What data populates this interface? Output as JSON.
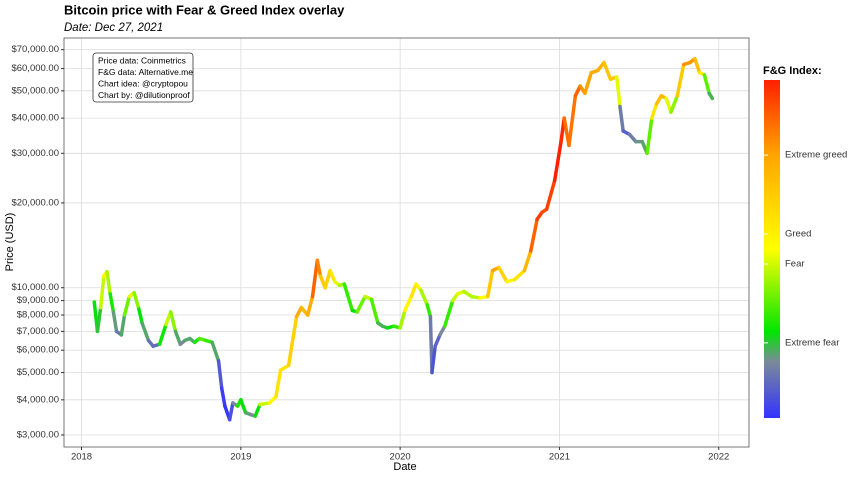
{
  "chart_data": {
    "type": "line",
    "title": "Bitcoin price with Fear & Greed Index overlay",
    "subtitle": "Date: Dec 27, 2021",
    "xlabel": "Date",
    "ylabel": "Price (USD)",
    "annotations": [
      "Price data: Coinmetrics",
      "F&G data: Alternative.me",
      "Chart idea: @cryptopou",
      "Chart by: @dilutionproof"
    ],
    "legend_title": "F&G Index:",
    "log_y": true,
    "grid": true,
    "xlim": [
      2017.89,
      2022.19
    ],
    "xticks": [
      2018,
      2019,
      2020,
      2021,
      2022
    ],
    "ylim": [
      2720,
      77000
    ],
    "yticks": [
      {
        "value": 3000,
        "label": "$3,000.00"
      },
      {
        "value": 4000,
        "label": "$4,000.00"
      },
      {
        "value": 5000,
        "label": "$5,000.00"
      },
      {
        "value": 6000,
        "label": "$6,000.00"
      },
      {
        "value": 7000,
        "label": "$7,000.00"
      },
      {
        "value": 8000,
        "label": "$8,000.00"
      },
      {
        "value": 9000,
        "label": "$9,000.00"
      },
      {
        "value": 10000,
        "label": "$10,000.00"
      },
      {
        "value": 20000,
        "label": "$20,000.00"
      },
      {
        "value": 30000,
        "label": "$30,000.00"
      },
      {
        "value": 40000,
        "label": "$40,000.00"
      },
      {
        "value": 50000,
        "label": "$50,000.00"
      },
      {
        "value": 60000,
        "label": "$60,000.00"
      },
      {
        "value": 70000,
        "label": "$70,000.00"
      }
    ],
    "clim": [
      5,
      95
    ],
    "cticks": [
      {
        "value": 25,
        "label": "Extreme fear"
      },
      {
        "value": 46,
        "label": "Fear"
      },
      {
        "value": 54,
        "label": "Greed"
      },
      {
        "value": 75,
        "label": "Extreme greed"
      }
    ],
    "colorscale": [
      [
        5,
        "#3333ff"
      ],
      [
        20,
        "#7a8a99"
      ],
      [
        28,
        "#00e600"
      ],
      [
        50,
        "#ffff00"
      ],
      [
        75,
        "#ffa500"
      ],
      [
        95,
        "#ff2000"
      ]
    ],
    "series": [
      {
        "x": [
          2018.08,
          2018.1,
          2018.12,
          2018.14,
          2018.16,
          2018.18,
          2018.2,
          2018.22,
          2018.25,
          2018.27,
          2018.3,
          2018.33,
          2018.36,
          2018.38,
          2018.42,
          2018.45,
          2018.49,
          2018.53,
          2018.56,
          2018.59,
          2018.62,
          2018.65,
          2018.68,
          2018.71,
          2018.74,
          2018.78,
          2018.82,
          2018.86,
          2018.88,
          2018.9,
          2018.93,
          2018.95,
          2018.98,
          2019.0,
          2019.03,
          2019.06,
          2019.09,
          2019.12,
          2019.18,
          2019.22,
          2019.25,
          2019.3,
          2019.35,
          2019.38,
          2019.42,
          2019.45,
          2019.48,
          2019.5,
          2019.53,
          2019.56,
          2019.59,
          2019.62,
          2019.65,
          2019.7,
          2019.73,
          2019.78,
          2019.82,
          2019.86,
          2019.89,
          2019.92,
          2019.96,
          2020.0,
          2020.03,
          2020.07,
          2020.1,
          2020.13,
          2020.17,
          2020.19,
          2020.2,
          2020.22,
          2020.25,
          2020.28,
          2020.33,
          2020.36,
          2020.4,
          2020.45,
          2020.5,
          2020.55,
          2020.58,
          2020.62,
          2020.67,
          2020.72,
          2020.78,
          2020.82,
          2020.86,
          2020.89,
          2020.92,
          2020.97,
          2021.01,
          2021.03,
          2021.06,
          2021.1,
          2021.13,
          2021.16,
          2021.2,
          2021.24,
          2021.28,
          2021.32,
          2021.36,
          2021.38,
          2021.4,
          2021.44,
          2021.48,
          2021.52,
          2021.55,
          2021.58,
          2021.61,
          2021.64,
          2021.67,
          2021.7,
          2021.74,
          2021.78,
          2021.82,
          2021.85,
          2021.88,
          2021.91,
          2021.94,
          2021.96
        ],
        "values": [
          8900,
          7000,
          8500,
          11000,
          11400,
          9500,
          8200,
          7000,
          6800,
          8000,
          9300,
          9600,
          8400,
          7500,
          6500,
          6200,
          6300,
          7400,
          8200,
          7000,
          6300,
          6500,
          6600,
          6400,
          6600,
          6500,
          6400,
          5500,
          4400,
          3800,
          3400,
          3900,
          3800,
          4000,
          3600,
          3550,
          3500,
          3850,
          3900,
          4100,
          5100,
          5300,
          7900,
          8500,
          8000,
          9300,
          12500,
          11000,
          10000,
          11500,
          10500,
          10200,
          10300,
          8300,
          8200,
          9300,
          9100,
          7500,
          7300,
          7200,
          7300,
          7200,
          8300,
          9300,
          10300,
          9800,
          8700,
          7900,
          5000,
          6200,
          6800,
          7300,
          9000,
          9500,
          9700,
          9300,
          9200,
          9300,
          11500,
          11800,
          10500,
          10700,
          11500,
          13500,
          17500,
          18500,
          19000,
          24000,
          33000,
          40000,
          32000,
          48000,
          52000,
          49000,
          58000,
          59000,
          63000,
          55000,
          56000,
          44000,
          36000,
          35000,
          33000,
          33000,
          30000,
          40000,
          45000,
          48000,
          47000,
          42000,
          48000,
          62000,
          63000,
          65000,
          58000,
          57000,
          49000,
          47000
        ],
        "fg": [
          40,
          15,
          35,
          55,
          50,
          35,
          25,
          18,
          15,
          30,
          45,
          50,
          30,
          25,
          20,
          12,
          18,
          40,
          50,
          30,
          15,
          25,
          20,
          25,
          35,
          35,
          30,
          15,
          8,
          6,
          5,
          15,
          25,
          35,
          20,
          25,
          15,
          40,
          50,
          55,
          60,
          55,
          70,
          75,
          65,
          80,
          90,
          70,
          60,
          65,
          50,
          45,
          40,
          25,
          30,
          45,
          45,
          25,
          22,
          25,
          30,
          35,
          50,
          55,
          60,
          45,
          40,
          25,
          10,
          12,
          15,
          25,
          40,
          50,
          45,
          42,
          45,
          55,
          75,
          75,
          50,
          55,
          60,
          80,
          90,
          92,
          85,
          95,
          95,
          92,
          75,
          90,
          80,
          75,
          75,
          72,
          72,
          60,
          70,
          25,
          10,
          15,
          20,
          22,
          22,
          50,
          65,
          70,
          70,
          25,
          55,
          75,
          80,
          75,
          60,
          50,
          22,
          25
        ]
      }
    ]
  }
}
